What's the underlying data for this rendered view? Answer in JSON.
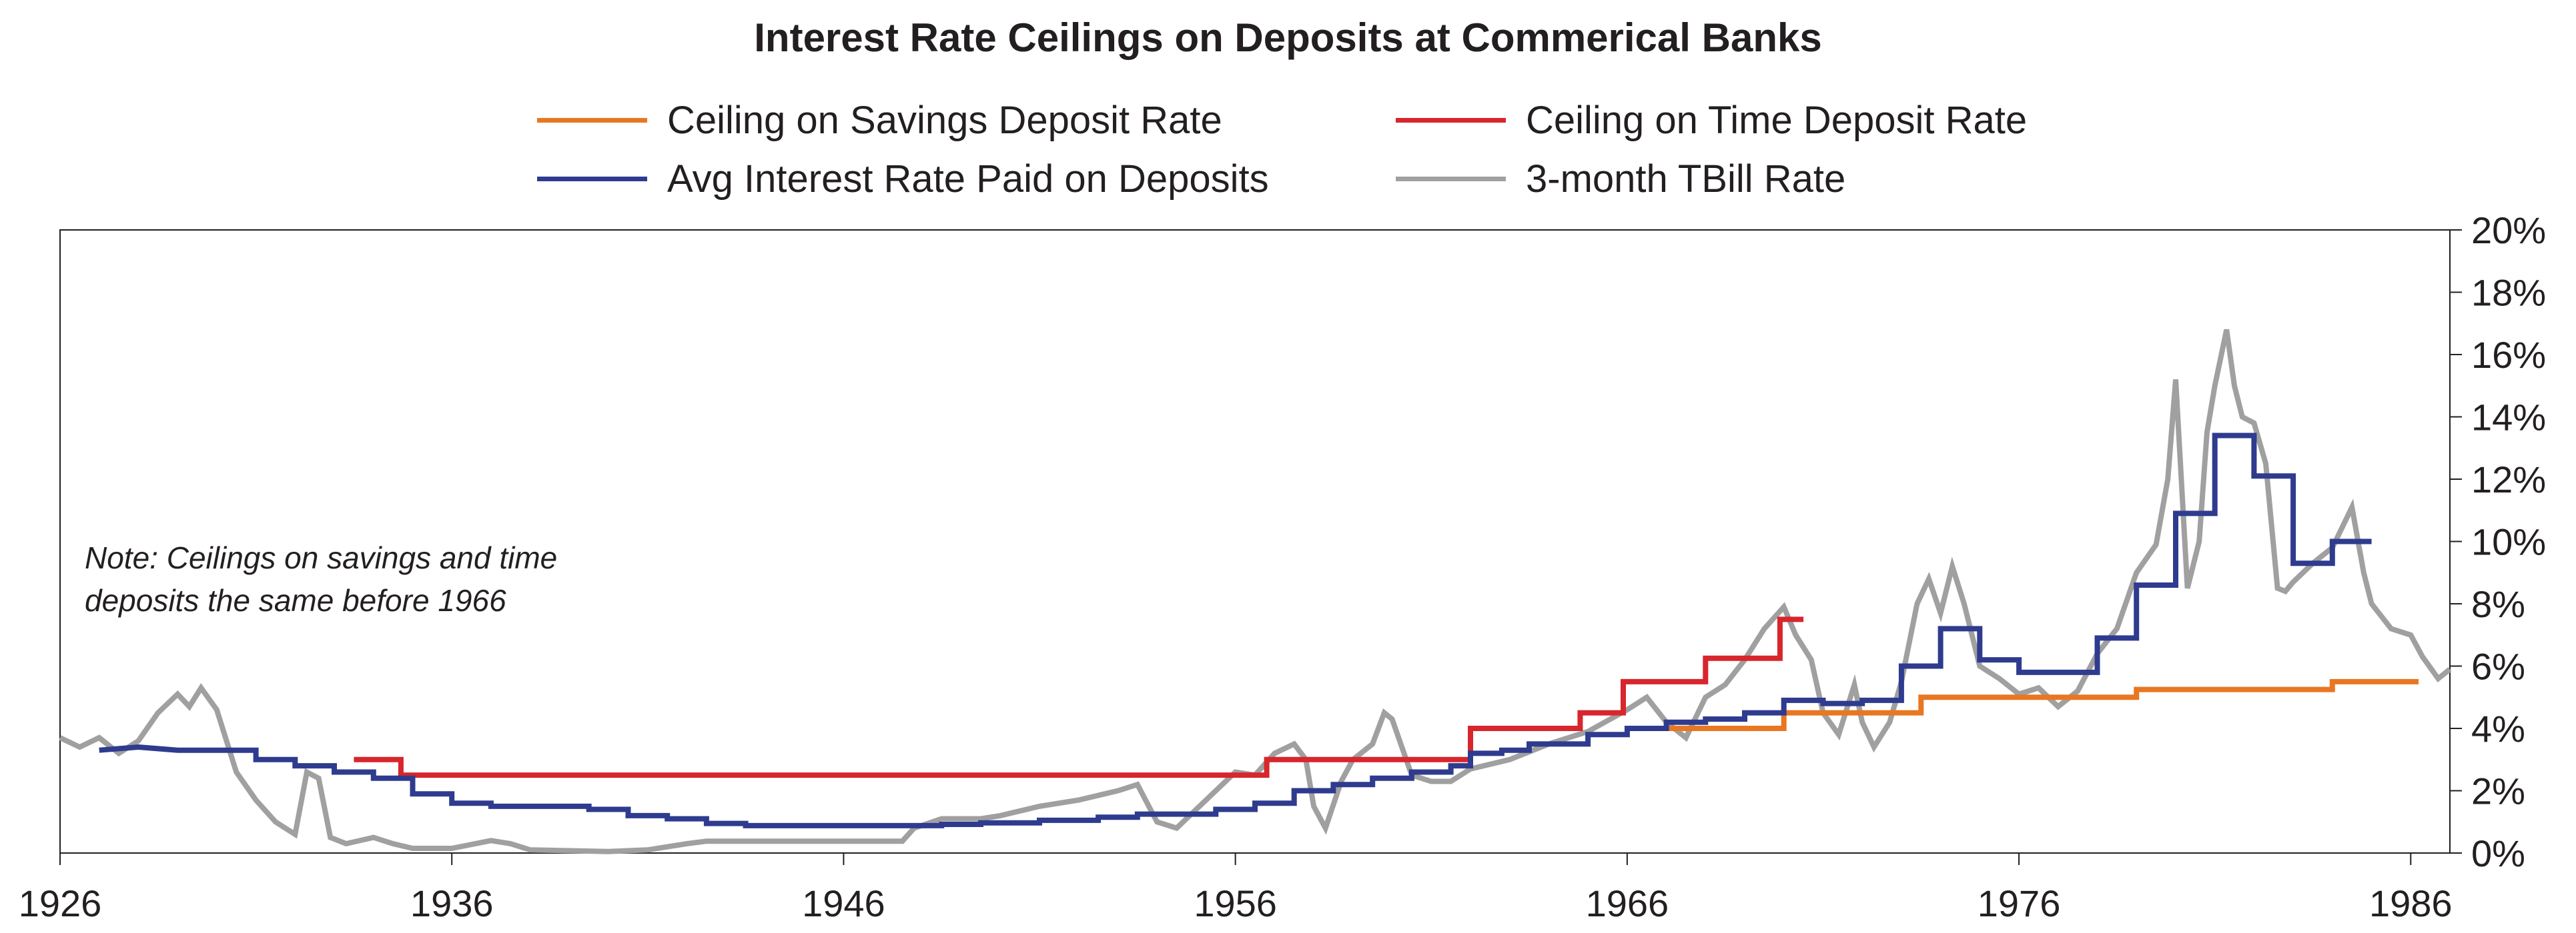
{
  "chart_data": {
    "type": "line",
    "title": "Interest Rate Ceilings on Deposits at Commerical Banks",
    "xlabel": "",
    "ylabel": "",
    "xlim": [
      1926,
      1987
    ],
    "ylim": [
      0,
      20
    ],
    "x_ticks": [
      1926,
      1936,
      1946,
      1956,
      1966,
      1976,
      1986
    ],
    "x_tick_labels": [
      "1926",
      "1936",
      "1946",
      "1956",
      "1966",
      "1976",
      "1986"
    ],
    "y_ticks": [
      0,
      2,
      4,
      6,
      8,
      10,
      12,
      14,
      16,
      18,
      20
    ],
    "y_tick_labels": [
      "0%",
      "2%",
      "4%",
      "6%",
      "8%",
      "10%",
      "12%",
      "14%",
      "16%",
      "18%",
      "20%"
    ],
    "y_axis_side": "right",
    "grid": false,
    "legend_position": "top-center",
    "annotation": [
      "Note: Ceilings on savings and time",
      "deposits the same before 1966"
    ],
    "series": [
      {
        "name": "Ceiling on Savings Deposit Rate",
        "color": "#e87722",
        "style": "step",
        "points": [
          [
            1966.0,
            4.0
          ],
          [
            1970.0,
            4.0
          ],
          [
            1970.0,
            4.5
          ],
          [
            1973.5,
            4.5
          ],
          [
            1973.5,
            5.0
          ],
          [
            1979.0,
            5.0
          ],
          [
            1979.0,
            5.25
          ],
          [
            1984.0,
            5.25
          ],
          [
            1984.0,
            5.5
          ],
          [
            1986.2,
            5.5
          ]
        ]
      },
      {
        "name": "Ceiling on Time Deposit Rate",
        "color": "#d7262c",
        "style": "step",
        "points": [
          [
            1933.5,
            3.0
          ],
          [
            1934.7,
            3.0
          ],
          [
            1934.7,
            2.5
          ],
          [
            1956.8,
            2.5
          ],
          [
            1956.8,
            3.0
          ],
          [
            1962.0,
            3.0
          ],
          [
            1962.0,
            4.0
          ],
          [
            1964.8,
            4.0
          ],
          [
            1964.8,
            4.5
          ],
          [
            1965.9,
            4.5
          ],
          [
            1965.9,
            5.5
          ],
          [
            1968.0,
            5.5
          ],
          [
            1968.0,
            6.25
          ],
          [
            1969.9,
            6.25
          ],
          [
            1969.9,
            7.5
          ],
          [
            1970.5,
            7.5
          ]
        ]
      },
      {
        "name": "Avg Interest Rate Paid on Deposits",
        "color": "#2e3b8e",
        "style": "step",
        "points": [
          [
            1927.0,
            3.3
          ],
          [
            1928.0,
            3.4
          ],
          [
            1929.0,
            3.3
          ],
          [
            1931.0,
            3.3
          ],
          [
            1931.0,
            3.0
          ],
          [
            1932.0,
            3.0
          ],
          [
            1932.0,
            2.8
          ],
          [
            1933.0,
            2.8
          ],
          [
            1933.0,
            2.6
          ],
          [
            1934.0,
            2.6
          ],
          [
            1934.0,
            2.4
          ],
          [
            1935.0,
            2.4
          ],
          [
            1935.0,
            1.9
          ],
          [
            1936.0,
            1.9
          ],
          [
            1936.0,
            1.6
          ],
          [
            1937.0,
            1.6
          ],
          [
            1937.0,
            1.5
          ],
          [
            1939.5,
            1.5
          ],
          [
            1939.5,
            1.4
          ],
          [
            1940.5,
            1.4
          ],
          [
            1940.5,
            1.2
          ],
          [
            1941.5,
            1.2
          ],
          [
            1941.5,
            1.1
          ],
          [
            1942.5,
            1.1
          ],
          [
            1942.5,
            0.95
          ],
          [
            1943.5,
            0.95
          ],
          [
            1943.5,
            0.88
          ],
          [
            1948.5,
            0.88
          ],
          [
            1948.5,
            0.92
          ],
          [
            1949.5,
            0.92
          ],
          [
            1949.5,
            0.97
          ],
          [
            1951.0,
            0.97
          ],
          [
            1951.0,
            1.05
          ],
          [
            1952.5,
            1.05
          ],
          [
            1952.5,
            1.15
          ],
          [
            1953.5,
            1.15
          ],
          [
            1953.5,
            1.25
          ],
          [
            1955.5,
            1.25
          ],
          [
            1955.5,
            1.4
          ],
          [
            1956.5,
            1.4
          ],
          [
            1956.5,
            1.6
          ],
          [
            1957.5,
            1.6
          ],
          [
            1957.5,
            2.0
          ],
          [
            1958.5,
            2.0
          ],
          [
            1958.5,
            2.2
          ],
          [
            1959.5,
            2.2
          ],
          [
            1959.5,
            2.4
          ],
          [
            1960.5,
            2.4
          ],
          [
            1960.5,
            2.6
          ],
          [
            1961.5,
            2.6
          ],
          [
            1961.5,
            2.8
          ],
          [
            1962.0,
            2.8
          ],
          [
            1962.0,
            3.2
          ],
          [
            1962.8,
            3.2
          ],
          [
            1962.8,
            3.3
          ],
          [
            1963.5,
            3.3
          ],
          [
            1963.5,
            3.5
          ],
          [
            1965.0,
            3.5
          ],
          [
            1965.0,
            3.8
          ],
          [
            1966.0,
            3.8
          ],
          [
            1966.0,
            4.0
          ],
          [
            1967.0,
            4.0
          ],
          [
            1967.0,
            4.2
          ],
          [
            1968.0,
            4.2
          ],
          [
            1968.0,
            4.3
          ],
          [
            1969.0,
            4.3
          ],
          [
            1969.0,
            4.5
          ],
          [
            1970.0,
            4.5
          ],
          [
            1970.0,
            4.9
          ],
          [
            1971.0,
            4.9
          ],
          [
            1971.0,
            4.8
          ],
          [
            1972.0,
            4.8
          ],
          [
            1972.0,
            4.9
          ],
          [
            1973.0,
            4.9
          ],
          [
            1973.0,
            6.0
          ],
          [
            1974.0,
            6.0
          ],
          [
            1974.0,
            7.2
          ],
          [
            1975.0,
            7.2
          ],
          [
            1975.0,
            6.2
          ],
          [
            1976.0,
            6.2
          ],
          [
            1976.0,
            5.8
          ],
          [
            1978.0,
            5.8
          ],
          [
            1978.0,
            6.9
          ],
          [
            1979.0,
            6.9
          ],
          [
            1979.0,
            8.6
          ],
          [
            1980.0,
            8.6
          ],
          [
            1980.0,
            10.9
          ],
          [
            1981.0,
            10.9
          ],
          [
            1981.0,
            13.4
          ],
          [
            1982.0,
            13.4
          ],
          [
            1982.0,
            12.1
          ],
          [
            1983.0,
            12.1
          ],
          [
            1983.0,
            9.3
          ],
          [
            1984.0,
            9.3
          ],
          [
            1984.0,
            10.0
          ],
          [
            1985.0,
            10.0
          ]
        ]
      },
      {
        "name": "3-month TBill Rate",
        "color": "#a0a0a0",
        "style": "line",
        "points": [
          [
            1926.0,
            3.7
          ],
          [
            1926.5,
            3.4
          ],
          [
            1927.0,
            3.7
          ],
          [
            1927.5,
            3.2
          ],
          [
            1928.0,
            3.6
          ],
          [
            1928.5,
            4.5
          ],
          [
            1929.0,
            5.1
          ],
          [
            1929.3,
            4.7
          ],
          [
            1929.6,
            5.3
          ],
          [
            1930.0,
            4.6
          ],
          [
            1930.5,
            2.6
          ],
          [
            1931.0,
            1.7
          ],
          [
            1931.5,
            1.0
          ],
          [
            1932.0,
            0.6
          ],
          [
            1932.3,
            2.6
          ],
          [
            1932.6,
            2.4
          ],
          [
            1932.9,
            0.5
          ],
          [
            1933.3,
            0.3
          ],
          [
            1934.0,
            0.5
          ],
          [
            1934.5,
            0.3
          ],
          [
            1935.0,
            0.15
          ],
          [
            1936.0,
            0.15
          ],
          [
            1937.0,
            0.4
          ],
          [
            1937.5,
            0.3
          ],
          [
            1938.0,
            0.1
          ],
          [
            1940.0,
            0.05
          ],
          [
            1941.0,
            0.1
          ],
          [
            1942.0,
            0.3
          ],
          [
            1942.5,
            0.38
          ],
          [
            1947.5,
            0.38
          ],
          [
            1947.8,
            0.8
          ],
          [
            1948.5,
            1.1
          ],
          [
            1949.5,
            1.1
          ],
          [
            1950.0,
            1.2
          ],
          [
            1951.0,
            1.5
          ],
          [
            1952.0,
            1.7
          ],
          [
            1953.0,
            2.0
          ],
          [
            1953.5,
            2.2
          ],
          [
            1954.0,
            1.0
          ],
          [
            1954.5,
            0.8
          ],
          [
            1955.0,
            1.4
          ],
          [
            1955.5,
            2.0
          ],
          [
            1956.0,
            2.6
          ],
          [
            1956.5,
            2.5
          ],
          [
            1957.0,
            3.2
          ],
          [
            1957.5,
            3.5
          ],
          [
            1957.8,
            3.0
          ],
          [
            1958.0,
            1.5
          ],
          [
            1958.3,
            0.8
          ],
          [
            1958.7,
            2.3
          ],
          [
            1959.0,
            3.0
          ],
          [
            1959.5,
            3.5
          ],
          [
            1959.8,
            4.5
          ],
          [
            1960.0,
            4.3
          ],
          [
            1960.5,
            2.5
          ],
          [
            1961.0,
            2.3
          ],
          [
            1961.5,
            2.3
          ],
          [
            1962.0,
            2.7
          ],
          [
            1963.0,
            3.0
          ],
          [
            1964.0,
            3.5
          ],
          [
            1965.0,
            3.9
          ],
          [
            1966.0,
            4.6
          ],
          [
            1966.5,
            5.0
          ],
          [
            1967.0,
            4.2
          ],
          [
            1967.5,
            3.7
          ],
          [
            1968.0,
            5.0
          ],
          [
            1968.5,
            5.4
          ],
          [
            1969.0,
            6.2
          ],
          [
            1969.5,
            7.2
          ],
          [
            1970.0,
            7.9
          ],
          [
            1970.3,
            7.0
          ],
          [
            1970.7,
            6.2
          ],
          [
            1971.0,
            4.5
          ],
          [
            1971.4,
            3.8
          ],
          [
            1971.8,
            5.4
          ],
          [
            1972.0,
            4.2
          ],
          [
            1972.3,
            3.4
          ],
          [
            1972.7,
            4.2
          ],
          [
            1973.0,
            5.5
          ],
          [
            1973.4,
            8.0
          ],
          [
            1973.7,
            8.8
          ],
          [
            1974.0,
            7.7
          ],
          [
            1974.3,
            9.2
          ],
          [
            1974.6,
            8.0
          ],
          [
            1975.0,
            6.0
          ],
          [
            1975.5,
            5.6
          ],
          [
            1976.0,
            5.1
          ],
          [
            1976.5,
            5.3
          ],
          [
            1977.0,
            4.7
          ],
          [
            1977.5,
            5.2
          ],
          [
            1978.0,
            6.4
          ],
          [
            1978.5,
            7.2
          ],
          [
            1979.0,
            9.0
          ],
          [
            1979.5,
            9.9
          ],
          [
            1979.8,
            12.0
          ],
          [
            1980.0,
            15.2
          ],
          [
            1980.3,
            8.5
          ],
          [
            1980.6,
            10.0
          ],
          [
            1980.8,
            13.5
          ],
          [
            1981.0,
            15.0
          ],
          [
            1981.3,
            16.8
          ],
          [
            1981.5,
            15.0
          ],
          [
            1981.7,
            14.0
          ],
          [
            1982.0,
            13.8
          ],
          [
            1982.3,
            12.5
          ],
          [
            1982.6,
            8.5
          ],
          [
            1982.8,
            8.4
          ],
          [
            1983.0,
            8.7
          ],
          [
            1983.5,
            9.3
          ],
          [
            1984.0,
            9.8
          ],
          [
            1984.5,
            11.1
          ],
          [
            1984.8,
            9.0
          ],
          [
            1985.0,
            8.0
          ],
          [
            1985.5,
            7.2
          ],
          [
            1986.0,
            7.0
          ],
          [
            1986.3,
            6.3
          ],
          [
            1986.7,
            5.6
          ],
          [
            1987.0,
            5.9
          ]
        ]
      }
    ]
  }
}
